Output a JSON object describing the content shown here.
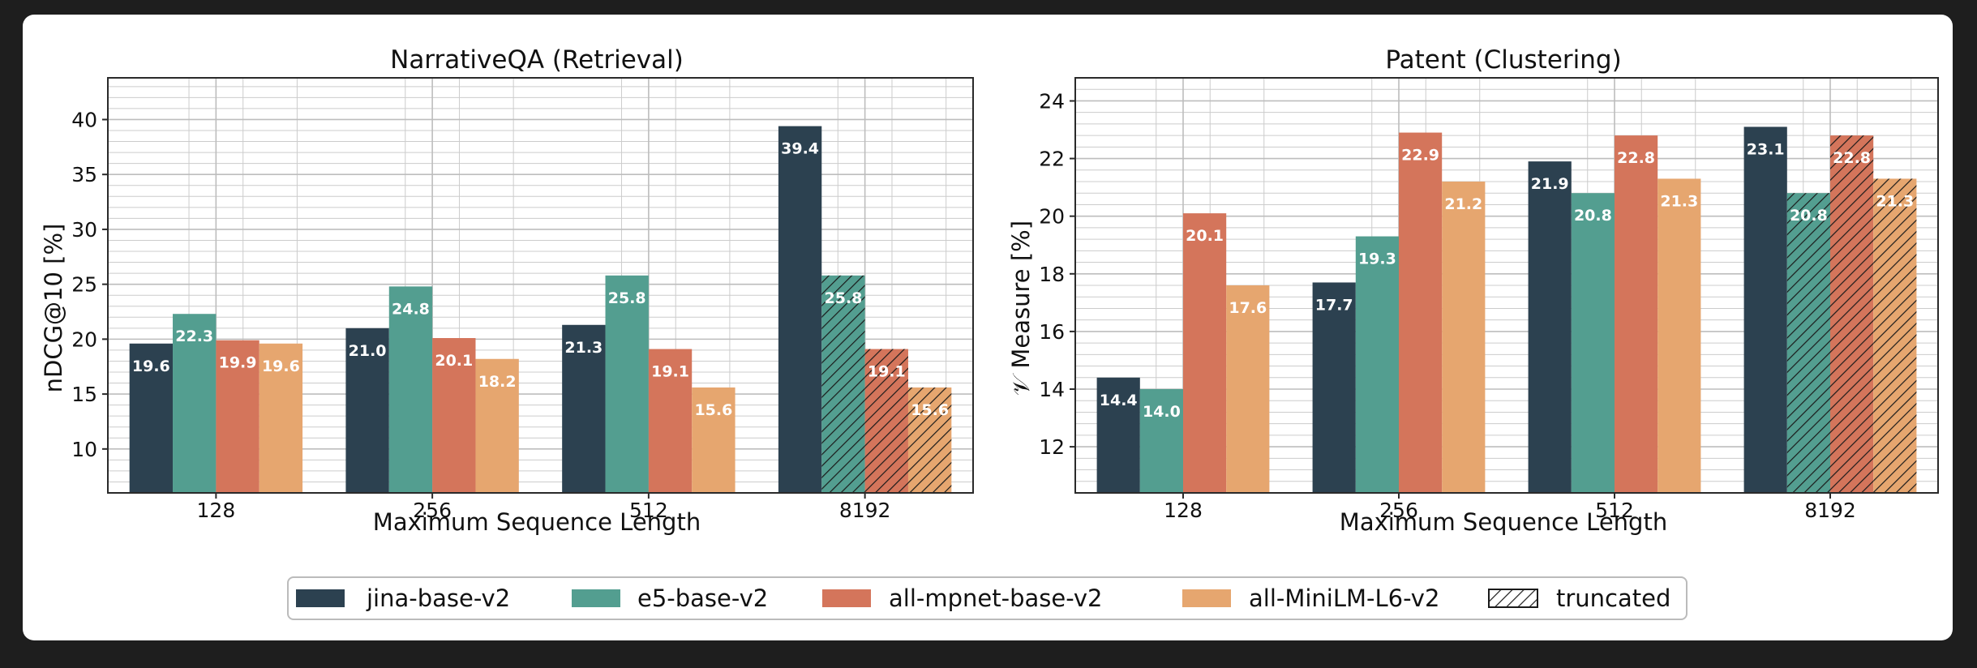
{
  "chart_data": [
    {
      "type": "bar",
      "title": "NarrativeQA (Retrieval)",
      "xlabel": "Maximum Sequence Length",
      "ylabel": "nDCG@10 [%]",
      "categories": [
        "128",
        "256",
        "512",
        "8192"
      ],
      "ylim": [
        6,
        43.8
      ],
      "yticks": [
        10,
        15,
        20,
        25,
        30,
        35,
        40
      ],
      "grid": true,
      "series": [
        {
          "name": "jina-base-v2",
          "values": [
            19.6,
            21.0,
            21.3,
            39.4
          ]
        },
        {
          "name": "e5-base-v2",
          "values": [
            22.3,
            24.8,
            25.8,
            25.8
          ]
        },
        {
          "name": "all-mpnet-base-v2",
          "values": [
            19.9,
            20.1,
            19.1,
            19.1
          ]
        },
        {
          "name": "all-MiniLM-L6-v2",
          "values": [
            19.6,
            18.2,
            15.6,
            15.6
          ]
        }
      ],
      "labels": [
        [
          "19.6",
          "21.0",
          "21.3",
          "39.4"
        ],
        [
          "22.3",
          "24.8",
          "25.8",
          "25.8"
        ],
        [
          "19.9",
          "20.1",
          "19.1",
          "19.1"
        ],
        [
          "19.6",
          "18.2",
          "15.6",
          "15.6"
        ]
      ],
      "truncated": [
        [
          false,
          false,
          false,
          false
        ],
        [
          false,
          false,
          false,
          true
        ],
        [
          false,
          false,
          false,
          true
        ],
        [
          false,
          false,
          false,
          true
        ]
      ]
    },
    {
      "type": "bar",
      "title": "Patent (Clustering)",
      "xlabel": "Maximum Sequence Length",
      "ylabel": "𝒱 Measure [%]",
      "categories": [
        "128",
        "256",
        "512",
        "8192"
      ],
      "ylim": [
        10.4,
        24.8
      ],
      "yticks": [
        12,
        14,
        16,
        18,
        20,
        22,
        24
      ],
      "grid": true,
      "series": [
        {
          "name": "jina-base-v2",
          "values": [
            14.4,
            17.7,
            21.9,
            23.1
          ]
        },
        {
          "name": "e5-base-v2",
          "values": [
            14.0,
            19.3,
            20.8,
            20.8
          ]
        },
        {
          "name": "all-mpnet-base-v2",
          "values": [
            20.1,
            22.9,
            22.8,
            22.8
          ]
        },
        {
          "name": "all-MiniLM-L6-v2",
          "values": [
            17.6,
            21.2,
            21.3,
            21.3
          ]
        }
      ],
      "labels": [
        [
          "14.4",
          "17.7",
          "21.9",
          "23.1"
        ],
        [
          "14.0",
          "19.3",
          "20.8",
          "20.8"
        ],
        [
          "20.1",
          "22.9",
          "22.8",
          "22.8"
        ],
        [
          "17.6",
          "21.2",
          "21.3",
          "21.3"
        ]
      ],
      "truncated": [
        [
          false,
          false,
          false,
          false
        ],
        [
          false,
          false,
          false,
          true
        ],
        [
          false,
          false,
          false,
          true
        ],
        [
          false,
          false,
          false,
          true
        ]
      ]
    }
  ],
  "legend": {
    "placement": "bottom-center",
    "items": [
      {
        "label": "jina-base-v2",
        "color": "#2c4150"
      },
      {
        "label": "e5-base-v2",
        "color": "#539e90"
      },
      {
        "label": "all-mpnet-base-v2",
        "color": "#d4755b"
      },
      {
        "label": "all-MiniLM-L6-v2",
        "color": "#e6a66f"
      },
      {
        "label": "truncated",
        "color": "#ffffff",
        "hatched": true
      }
    ]
  },
  "colors": {
    "series": [
      "#2c4150",
      "#539e90",
      "#d4755b",
      "#e6a66f"
    ],
    "grid": "#cccccc",
    "background": "#1e1e1e",
    "card": "#ffffff"
  }
}
